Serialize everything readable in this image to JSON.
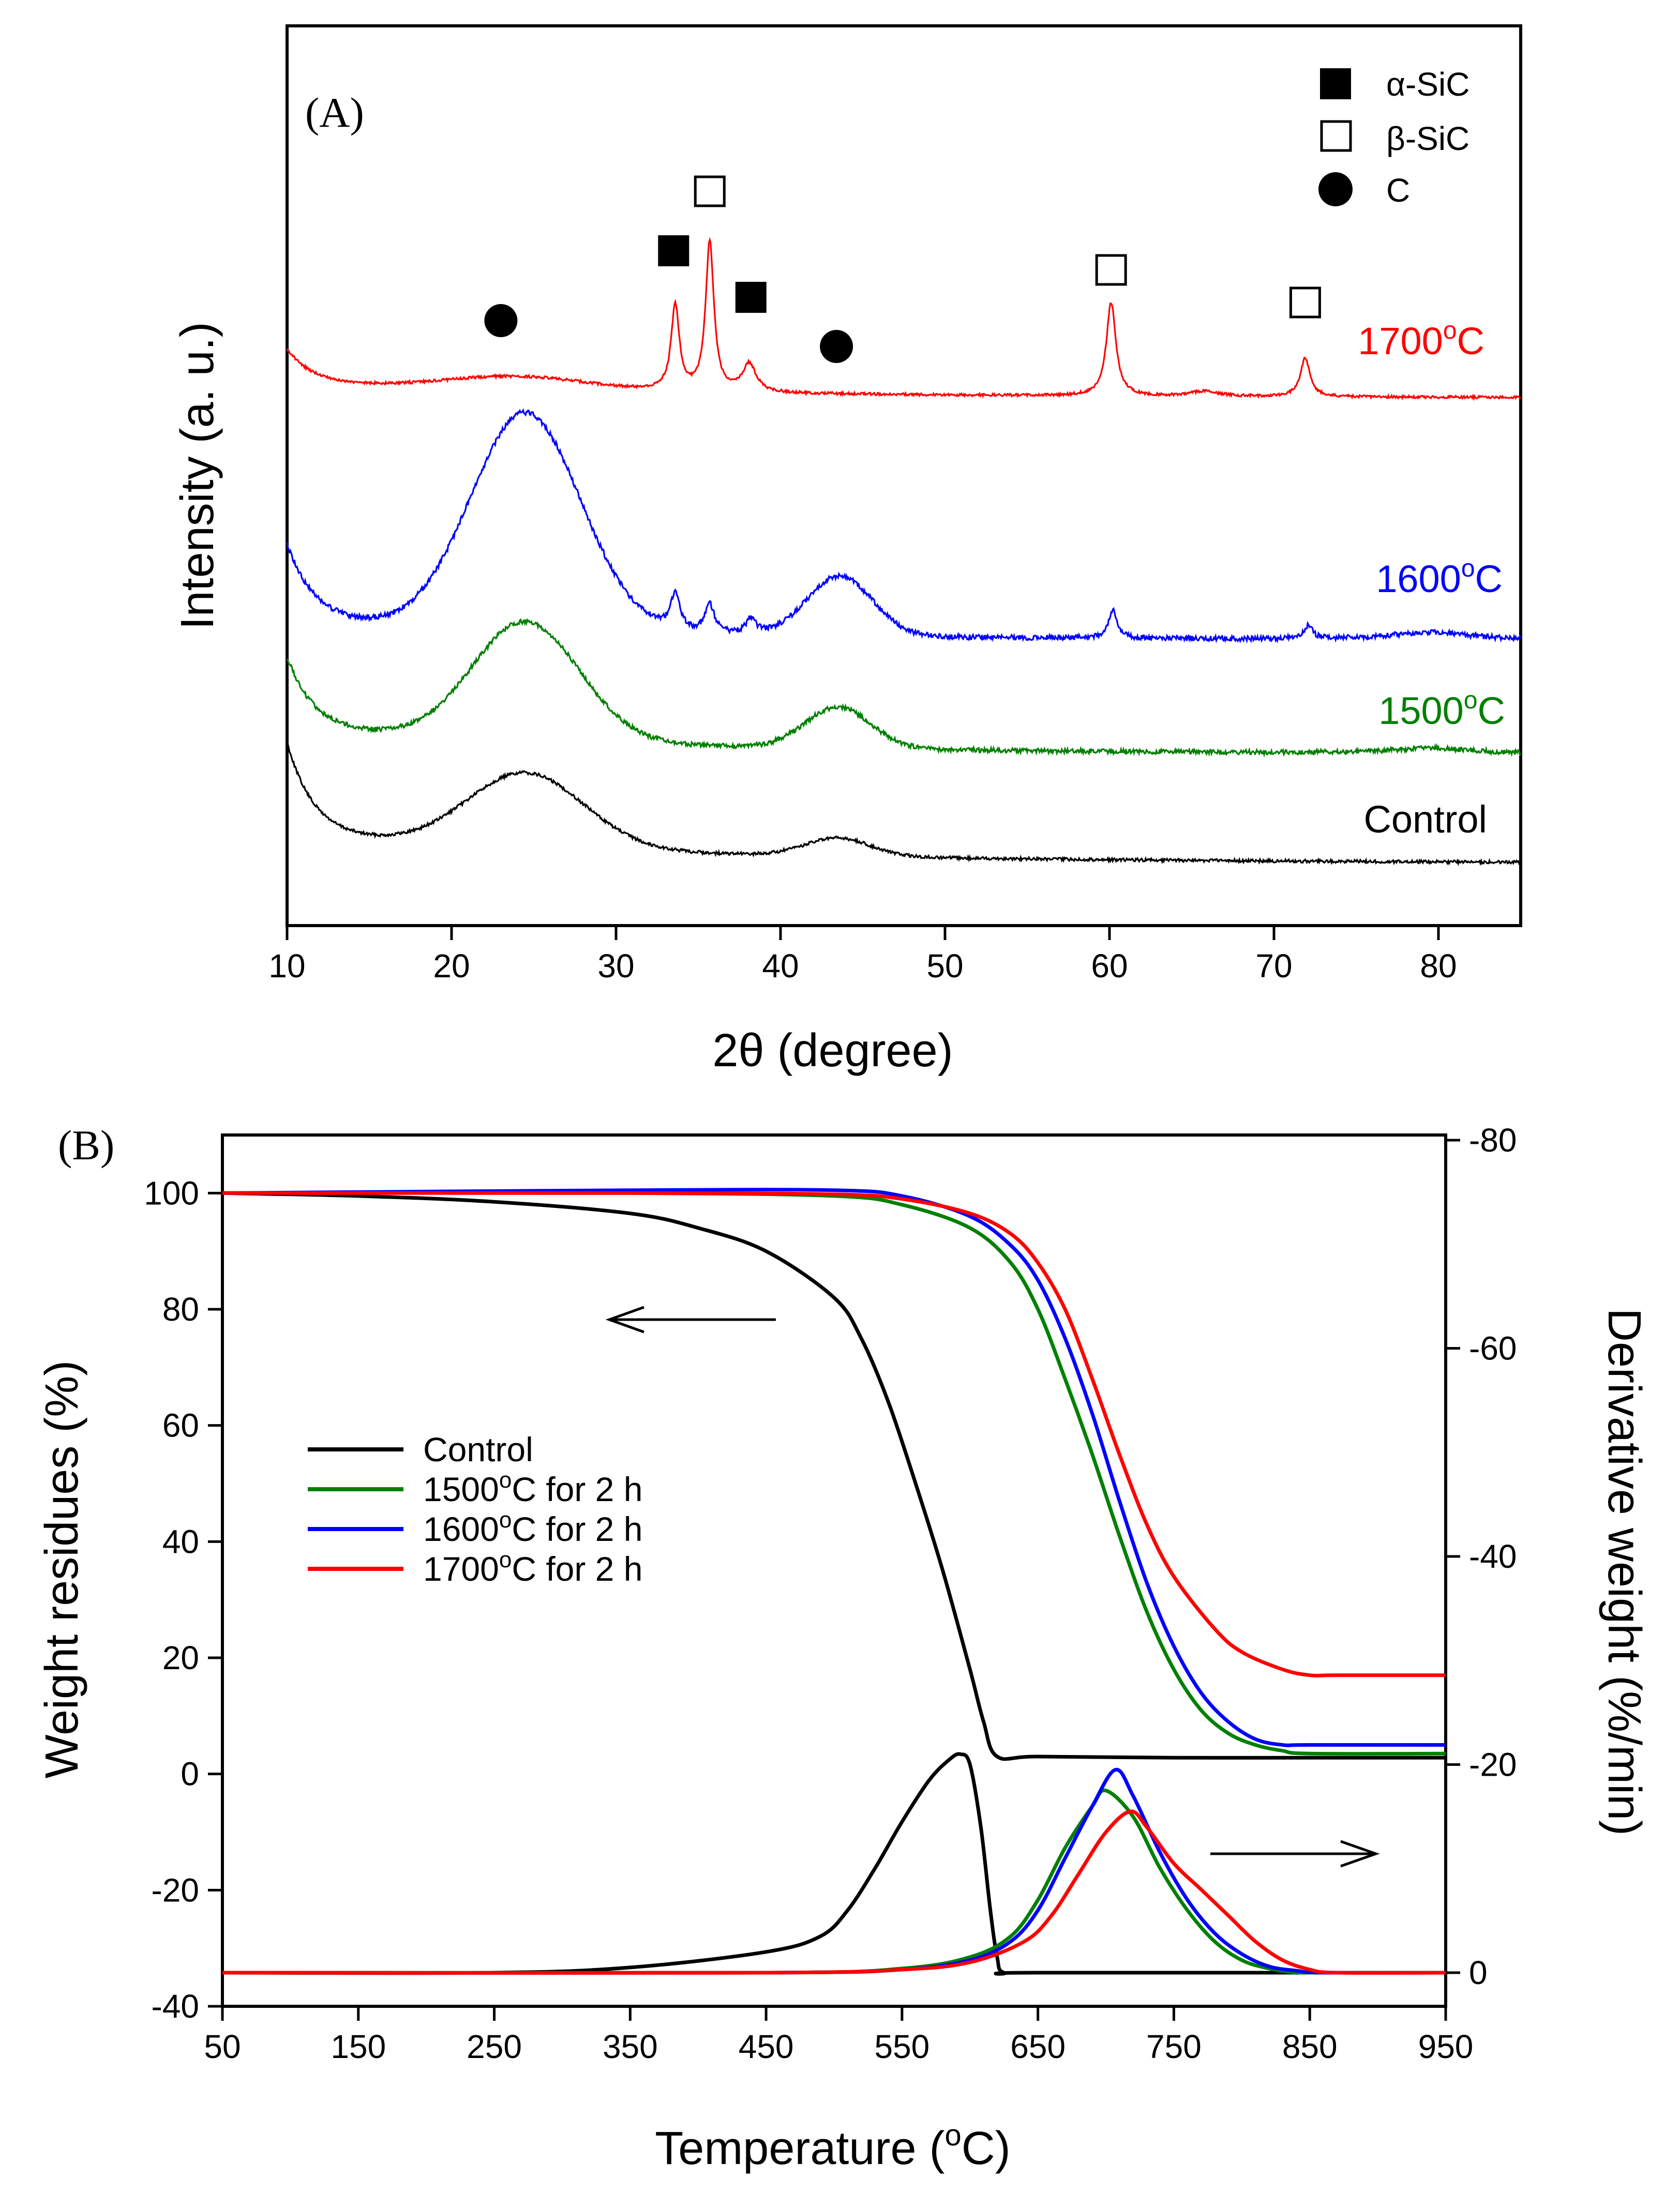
{
  "chart_data": [
    {
      "id": "A",
      "type": "line",
      "panel_label": "(A)",
      "xlabel": "2θ (degree)",
      "ylabel": "Intensity (a. u.)",
      "xlim": [
        10,
        85
      ],
      "xticks": [
        10,
        20,
        30,
        40,
        50,
        60,
        70,
        80
      ],
      "y_ticks_shown": false,
      "grid": false,
      "series": [
        {
          "name": "Control",
          "color": "#000000"
        },
        {
          "name": "1500°C",
          "color": "#008000"
        },
        {
          "name": "1600°C",
          "color": "#0000ff"
        },
        {
          "name": "1700°C",
          "color": "#ff0000"
        }
      ],
      "phase_legend": {
        "placement": "top-right",
        "items": [
          {
            "symbol": "filled-square",
            "label": "α-SiC"
          },
          {
            "symbol": "open-square",
            "label": "β-SiC"
          },
          {
            "symbol": "filled-circle",
            "label": "C"
          }
        ]
      },
      "peak_markers": [
        {
          "symbol": "filled-circle",
          "x": 23.0
        },
        {
          "symbol": "filled-square",
          "x": 33.5
        },
        {
          "symbol": "open-square",
          "x": 35.7
        },
        {
          "symbol": "filled-square",
          "x": 38.2
        },
        {
          "symbol": "filled-circle",
          "x": 43.4
        },
        {
          "symbol": "open-square",
          "x": 60.1
        },
        {
          "symbol": "open-square",
          "x": 71.9
        }
      ]
    },
    {
      "id": "B",
      "type": "line",
      "panel_label": "(B)",
      "xlabel": "Temperature (°C)",
      "ylabel_left": "Weight residues (%)",
      "ylabel_right": "Derivative weight (%/min)",
      "xlim": [
        50,
        950
      ],
      "ylim_left": [
        -40,
        110
      ],
      "ylim_right": [
        0,
        -80
      ],
      "xticks": [
        50,
        150,
        250,
        350,
        450,
        550,
        650,
        750,
        850,
        950
      ],
      "yticks_left": [
        -40,
        -20,
        0,
        20,
        40,
        60,
        80,
        100
      ],
      "yticks_right": [
        0,
        -20,
        -40,
        -60,
        -80
      ],
      "grid": false,
      "legend_placement": "center-left",
      "series": [
        {
          "name": "Control",
          "color": "#000000",
          "tga_x": [
            50,
            150,
            250,
            350,
            400,
            450,
            500,
            520,
            540,
            560,
            580,
            600,
            610,
            620,
            650,
            750,
            850,
            950
          ],
          "tga_y": [
            100,
            99.5,
            98.5,
            96.5,
            94,
            90,
            82,
            75,
            64,
            50,
            35,
            18,
            9,
            3,
            3,
            2.8,
            2.8,
            2.8
          ],
          "dtg_x": [
            50,
            250,
            350,
            450,
            490,
            510,
            530,
            550,
            570,
            585,
            593,
            600,
            608,
            615,
            620,
            625,
            650,
            950
          ],
          "dtg_y": [
            0,
            0,
            -0.5,
            -2,
            -3.5,
            -6,
            -10,
            -14.5,
            -18.5,
            -20.5,
            -21,
            -20,
            -14,
            -6,
            -1.5,
            0,
            0,
            0
          ]
        },
        {
          "name": "1500°C for 2 h",
          "color": "#008000",
          "tga_x": [
            50,
            350,
            500,
            550,
            600,
            630,
            650,
            670,
            690,
            710,
            730,
            750,
            770,
            790,
            810,
            830,
            850,
            950
          ],
          "tga_y": [
            100,
            100,
            99.5,
            98,
            94,
            88,
            80,
            68,
            55,
            41,
            28,
            18,
            11,
            7,
            5,
            4,
            3.5,
            3.5
          ],
          "dtg_x": [
            50,
            450,
            550,
            600,
            630,
            650,
            670,
            690,
            700,
            720,
            740,
            760,
            780,
            800,
            820,
            840,
            850,
            950
          ],
          "dtg_y": [
            0,
            0,
            -0.4,
            -1.5,
            -3.5,
            -7,
            -12,
            -16,
            -17.5,
            -15,
            -10,
            -6,
            -3,
            -1.2,
            -0.4,
            0,
            0,
            0
          ]
        },
        {
          "name": "1600°C for 2 h",
          "color": "#0000ff",
          "tga_x": [
            50,
            350,
            500,
            550,
            600,
            630,
            650,
            670,
            690,
            710,
            730,
            750,
            770,
            790,
            810,
            830,
            850,
            950
          ],
          "tga_y": [
            100,
            100.5,
            100.5,
            99.5,
            96,
            91,
            85,
            75,
            62,
            47,
            33,
            22,
            14,
            9,
            6,
            5,
            5,
            5
          ],
          "dtg_x": [
            50,
            450,
            550,
            600,
            630,
            650,
            670,
            690,
            707,
            720,
            740,
            760,
            780,
            800,
            820,
            840,
            860,
            950
          ],
          "dtg_y": [
            0,
            0,
            -0.3,
            -1.2,
            -3,
            -6,
            -11,
            -16,
            -19.5,
            -17,
            -11.5,
            -7,
            -3.8,
            -1.8,
            -0.6,
            -0.2,
            0,
            0
          ]
        },
        {
          "name": "1700°C for 2 h",
          "color": "#ff0000",
          "tga_x": [
            50,
            350,
            500,
            550,
            600,
            630,
            650,
            670,
            690,
            710,
            730,
            750,
            780,
            800,
            830,
            850,
            870,
            950
          ],
          "tga_y": [
            100,
            100,
            99.8,
            99,
            96.5,
            93,
            88,
            80,
            68,
            55,
            43,
            34,
            25,
            21,
            18,
            17,
            17,
            17
          ],
          "dtg_x": [
            50,
            450,
            550,
            600,
            640,
            660,
            680,
            700,
            718,
            730,
            750,
            770,
            790,
            810,
            830,
            850,
            870,
            950
          ],
          "dtg_y": [
            0,
            0,
            -0.3,
            -1,
            -3,
            -5.5,
            -9.5,
            -13.5,
            -15.5,
            -14,
            -10.5,
            -8,
            -5.5,
            -3,
            -1.2,
            -0.3,
            0,
            0
          ]
        }
      ]
    }
  ]
}
